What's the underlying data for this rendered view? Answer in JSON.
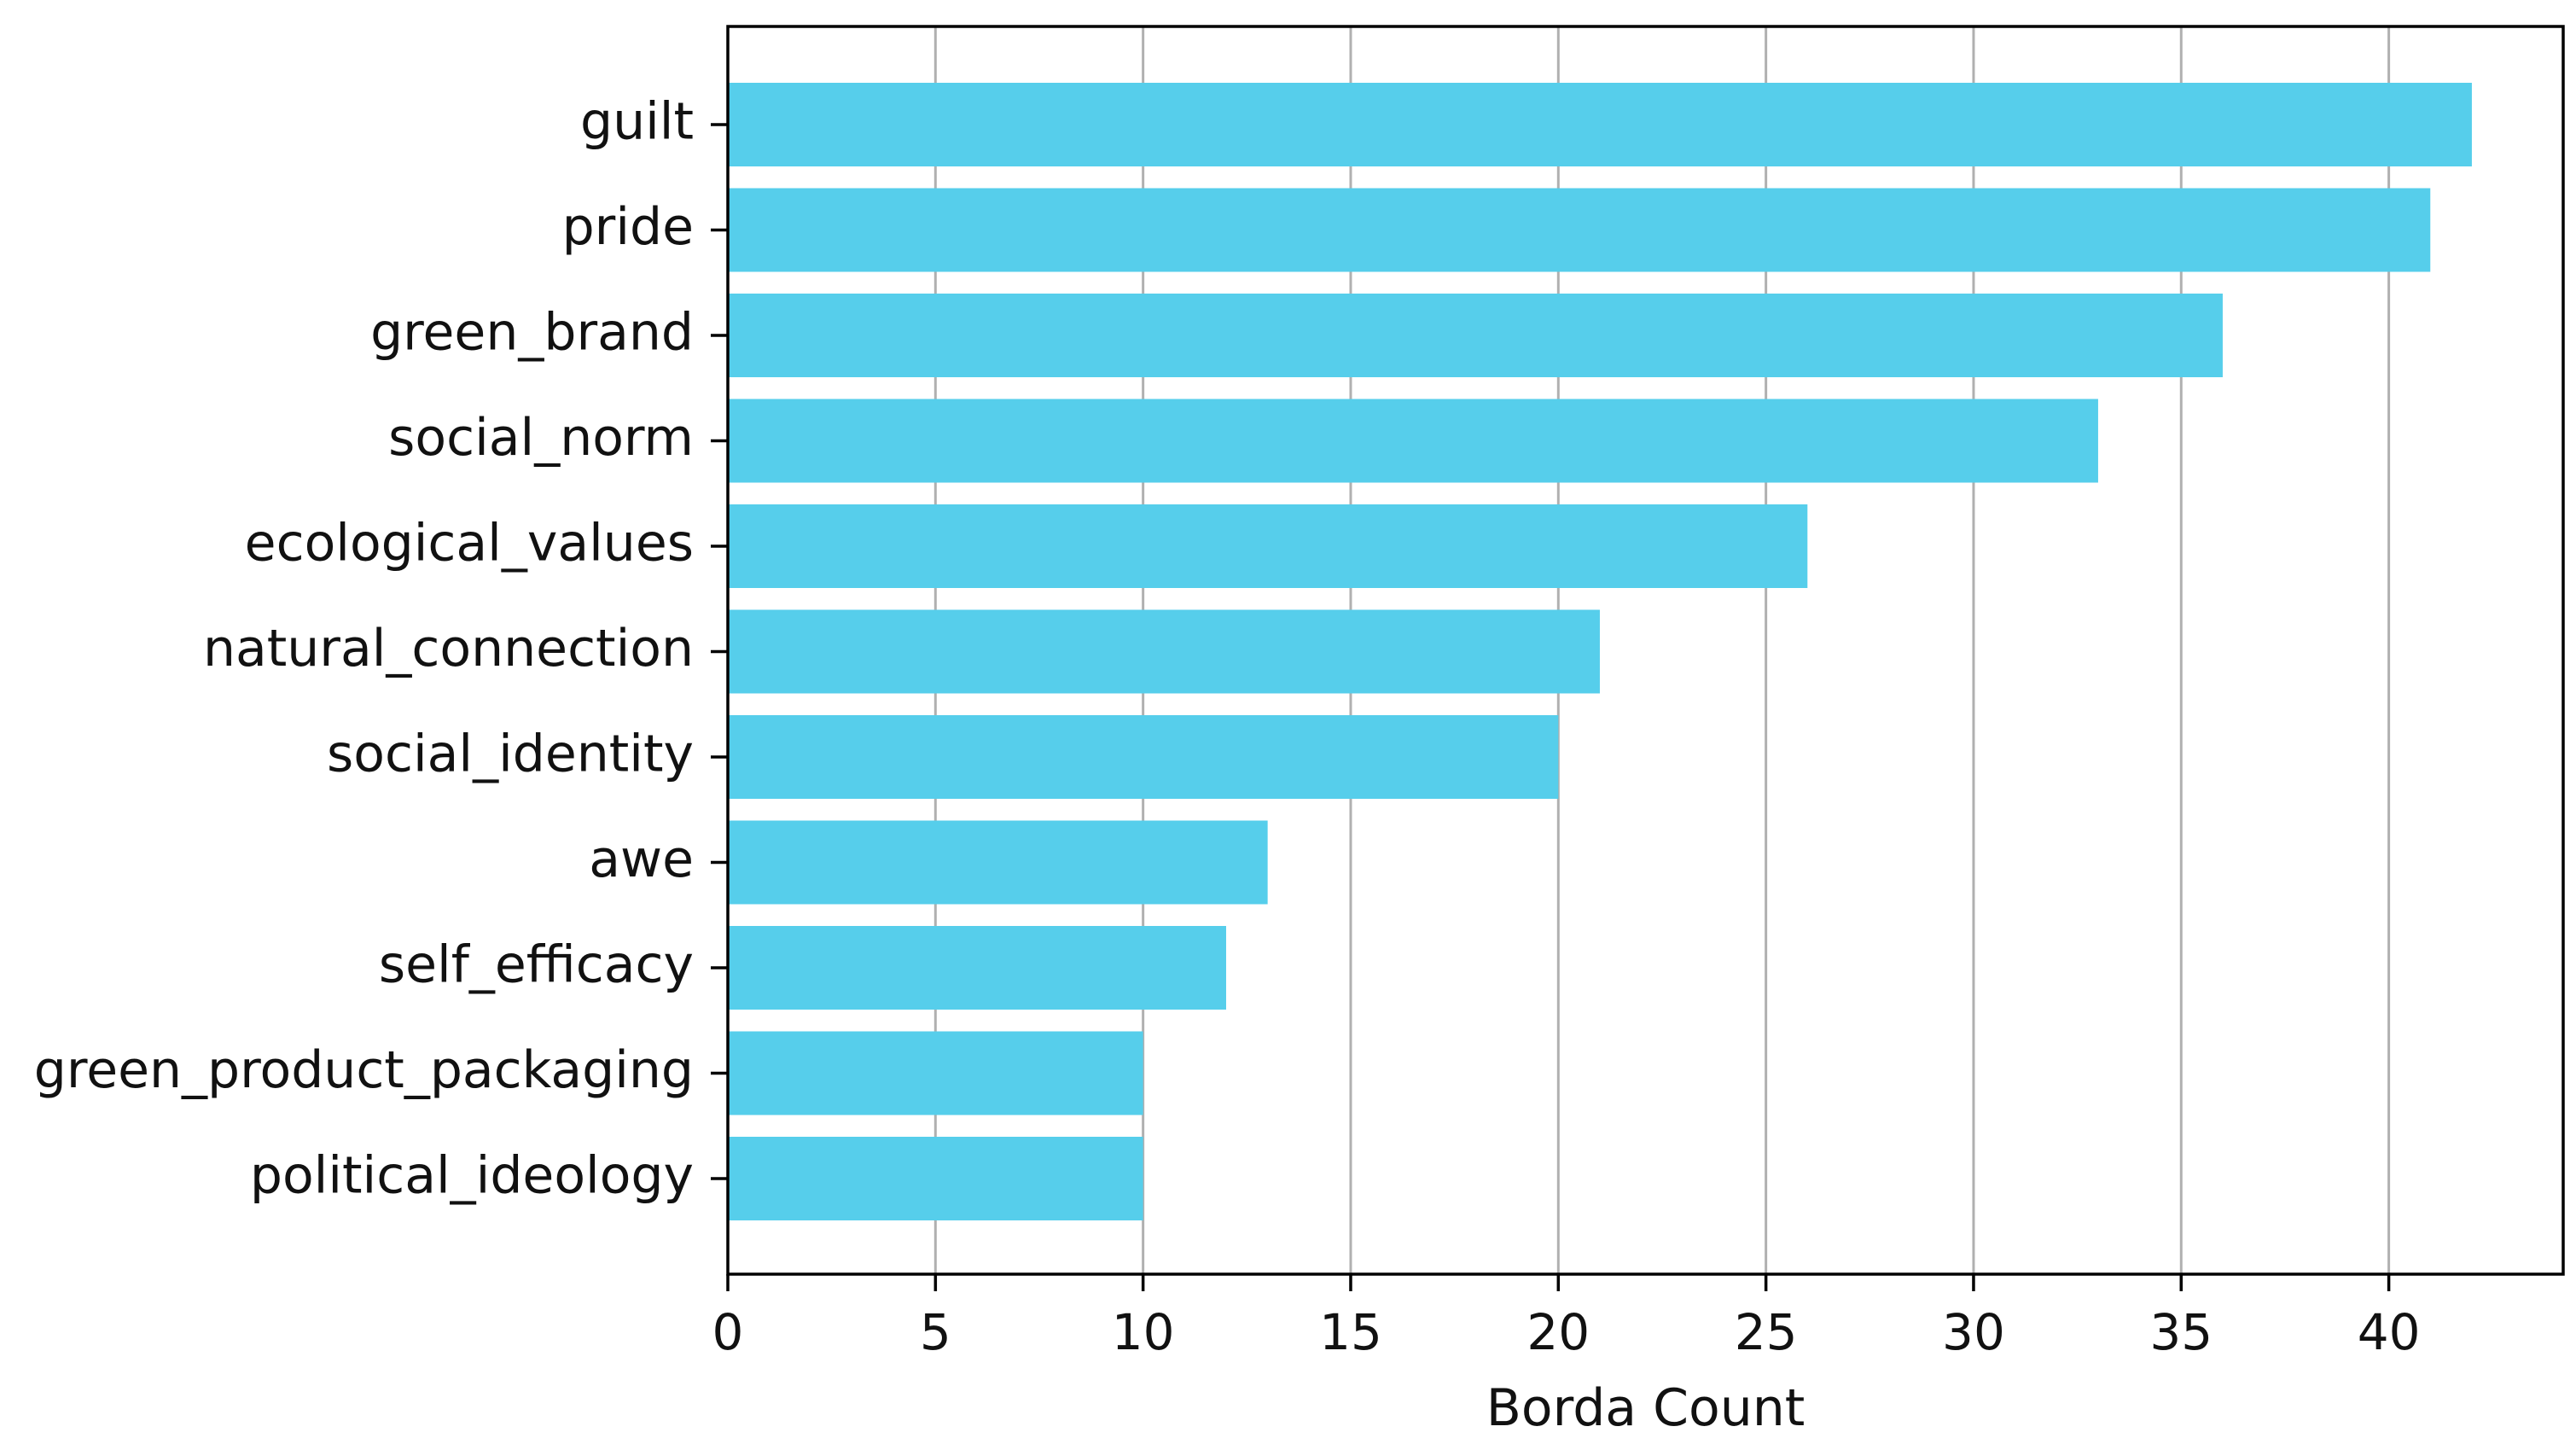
{
  "chart_data": {
    "type": "bar",
    "orientation": "horizontal",
    "title": "",
    "xlabel": "Borda Count",
    "ylabel": "",
    "categories": [
      "guilt",
      "pride",
      "green_brand",
      "social_norm",
      "ecological_values",
      "natural_connection",
      "social_identity",
      "awe",
      "self_efficacy",
      "green_product_packaging",
      "political_ideology"
    ],
    "values": [
      42,
      41,
      36,
      33,
      26,
      21,
      20,
      13,
      12,
      10,
      10
    ],
    "xlim": [
      0,
      44.2
    ],
    "xticks": [
      0,
      5,
      10,
      15,
      20,
      25,
      30,
      35,
      40
    ],
    "xtick_labels": [
      "0",
      "5",
      "10",
      "15",
      "20",
      "25",
      "30",
      "35",
      "40"
    ],
    "grid": "vertical",
    "legend": "none",
    "colors": {
      "bar": "#56CEEB",
      "grid": "#b0b0b0",
      "axis": "#000000"
    }
  }
}
